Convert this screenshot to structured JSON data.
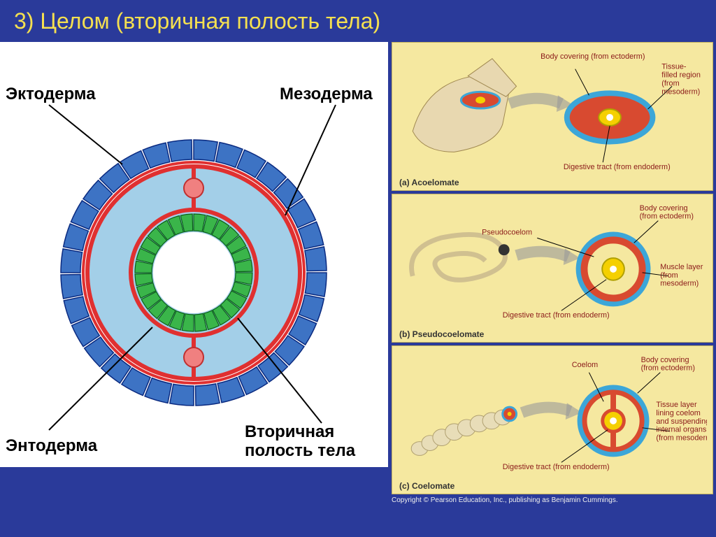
{
  "slide": {
    "background_color": "#2a3a9a",
    "title": "3) Целом (вторичная полость тела)",
    "title_color": "#f5e050",
    "title_fontsize": 32
  },
  "left_diagram": {
    "type": "cross-section-ring",
    "background": "#ffffff",
    "labels": {
      "ectoderm": "Эктодерма",
      "mesoderm": "Мезодерма",
      "endoderm": "Энтодерма",
      "coelom": "Вторичная\nполость тела"
    },
    "rings": {
      "outer_blocks": {
        "fill": "#3d73c4",
        "stroke": "#0a2a80",
        "count": 32,
        "r_out": 190,
        "r_in": 162
      },
      "outer_thin": {
        "r": 158,
        "stroke": "#e03030",
        "width": 4
      },
      "coelom_body": {
        "fill": "#a3cfe8",
        "r_out": 152,
        "r_in": 90
      },
      "mesoderm_outer": {
        "r": 152,
        "stroke": "#e03030",
        "width": 6
      },
      "mesoderm_inner": {
        "r": 90,
        "stroke": "#e03030",
        "width": 6
      },
      "endoderm_blocks": {
        "fill": "#3ab54a",
        "stroke": "#0a6018",
        "count": 28,
        "r_out": 84,
        "r_in": 60
      },
      "lumen": {
        "fill": "#ffffff",
        "r": 56
      },
      "mesentery_nodes": {
        "fill": "#f08080",
        "stroke": "#c03030",
        "r": 14,
        "positions": [
          "top",
          "bottom"
        ]
      },
      "mesentery_bars": {
        "stroke": "#e03030",
        "width": 6
      }
    },
    "label_line_color": "#000000",
    "label_fontsize": 24
  },
  "right_panels": [
    {
      "id": "a",
      "caption": "(a) Acoelomate",
      "organism_shape": "flatworm",
      "cross_section": {
        "outer": "#3ca6d8",
        "mesoderm_fill": "#d84a30",
        "endoderm": "#f5d000",
        "lumen": "#ffffff",
        "shape": "ellipse"
      },
      "callouts": [
        {
          "text": "Body covering\n(from ectoderm)",
          "anchor": "top"
        },
        {
          "text": "Tissue-\nfilled region\n(from\nmesoderm)",
          "anchor": "right"
        },
        {
          "text": "Digestive tract\n(from endoderm)",
          "anchor": "bottom"
        }
      ]
    },
    {
      "id": "b",
      "caption": "(b) Pseudocoelomate",
      "organism_shape": "roundworm",
      "cross_section": {
        "outer": "#3ca6d8",
        "muscle": "#d84a30",
        "pseudocoelom": "#f5e8a0",
        "endoderm": "#f5d000",
        "lumen": "#ffffff",
        "shape": "circle"
      },
      "callouts": [
        {
          "text": "Pseudocoelom",
          "anchor": "left"
        },
        {
          "text": "Body covering\n(from ectoderm)",
          "anchor": "top-right"
        },
        {
          "text": "Muscle layer\n(from\nmesoderm)",
          "anchor": "right"
        },
        {
          "text": "Digestive tract\n(from endoderm)",
          "anchor": "bottom-left"
        }
      ]
    },
    {
      "id": "c",
      "caption": "(c) Coelomate",
      "organism_shape": "annelid",
      "cross_section": {
        "outer": "#3ca6d8",
        "mesoderm_outer": "#d84a30",
        "coelom": "#f5e8a0",
        "mesoderm_inner": "#d84a30",
        "endoderm": "#f5d000",
        "lumen": "#ffffff",
        "mesentery": true,
        "shape": "circle"
      },
      "callouts": [
        {
          "text": "Coelom",
          "anchor": "top"
        },
        {
          "text": "Body covering\n(from ectoderm)",
          "anchor": "top-right"
        },
        {
          "text": "Tissue layer\nlining coelom\nand suspending\ninternal organs\n(from mesoderm)",
          "anchor": "right"
        },
        {
          "text": "Digestive tract\n(from endoderm)",
          "anchor": "bottom-left"
        }
      ]
    }
  ],
  "copyright": "Copyright © Pearson Education, Inc., publishing as Benjamin Cummings."
}
